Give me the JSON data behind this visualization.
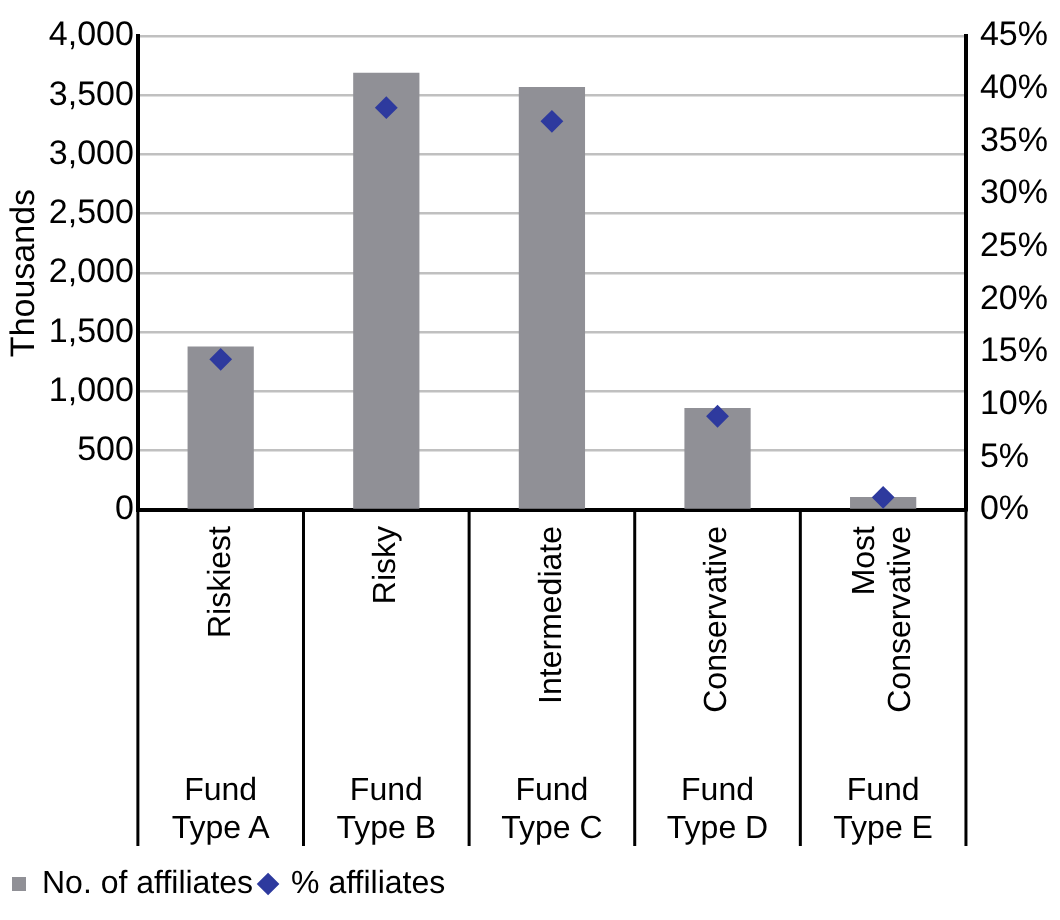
{
  "chart_data": {
    "type": "bar",
    "ylabel": "Thousands",
    "categories": [
      "Riskiest",
      "Risky",
      "Intermediate",
      "Conservative",
      "Most Conservative"
    ],
    "annotations": [
      "Fund Type A",
      "Fund Type B",
      "Fund Type C",
      "Fund Type D",
      "Fund Type E"
    ],
    "series": [
      {
        "name": "No. of affiliates",
        "color": "#909096",
        "values": [
          1380,
          3690,
          3570,
          860,
          110
        ]
      },
      {
        "name": "% affiliates",
        "type": "scatter",
        "axis": "y2",
        "color": "#2e3a9e",
        "marker": "diamond",
        "values": [
          14.3,
          38.2,
          36.9,
          8.9,
          1.2
        ]
      }
    ],
    "ylim": [
      0,
      4000
    ],
    "yticks": [
      {
        "value": 0,
        "label": "0"
      },
      {
        "value": 500,
        "label": "500"
      },
      {
        "value": 1000,
        "label": "1,000"
      },
      {
        "value": 1500,
        "label": "1,500"
      },
      {
        "value": 2000,
        "label": "2,000"
      },
      {
        "value": 2500,
        "label": "2,500"
      },
      {
        "value": 3000,
        "label": "3,000"
      },
      {
        "value": 3500,
        "label": "3,500"
      },
      {
        "value": 4000,
        "label": "4,000"
      }
    ],
    "y2lim": [
      0,
      45
    ],
    "y2ticks": [
      {
        "value": 0,
        "label": "0%"
      },
      {
        "value": 5,
        "label": "5%"
      },
      {
        "value": 10,
        "label": "10%"
      },
      {
        "value": 15,
        "label": "15%"
      },
      {
        "value": 20,
        "label": "20%"
      },
      {
        "value": 25,
        "label": "25%"
      },
      {
        "value": 30,
        "label": "30%"
      },
      {
        "value": 35,
        "label": "35%"
      },
      {
        "value": 40,
        "label": "40%"
      },
      {
        "value": 45,
        "label": "45%"
      }
    ],
    "grid": "y",
    "legend": "bottom left"
  }
}
